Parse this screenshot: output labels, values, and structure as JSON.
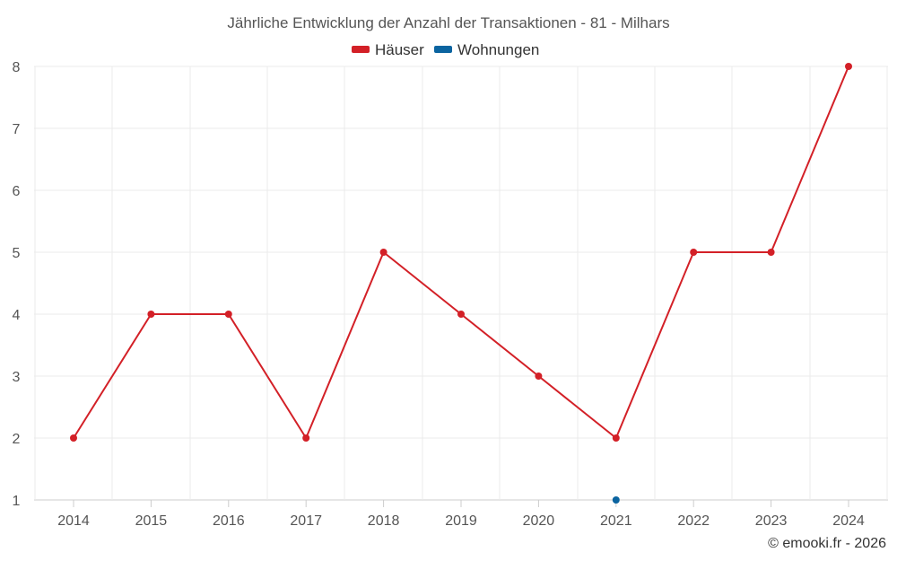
{
  "chart_data": {
    "type": "line",
    "title": "Jährliche Entwicklung der Anzahl der Transaktionen - 81 - Milhars",
    "categories": [
      "2014",
      "2015",
      "2016",
      "2017",
      "2018",
      "2019",
      "2020",
      "2021",
      "2022",
      "2023",
      "2024"
    ],
    "series": [
      {
        "name": "Häuser",
        "color": "#d32027",
        "values": [
          2,
          4,
          4,
          2,
          5,
          4,
          3,
          2,
          5,
          5,
          8
        ]
      },
      {
        "name": "Wohnungen",
        "color": "#0b64a0",
        "values": [
          null,
          null,
          null,
          null,
          null,
          null,
          null,
          1,
          null,
          null,
          null
        ]
      }
    ],
    "y_ticks": [
      "1",
      "2",
      "3",
      "4",
      "5",
      "6",
      "7",
      "8"
    ],
    "ylim": [
      1,
      8
    ],
    "grid": true,
    "legend": "top-center",
    "credit": "© emooki.fr - 2026"
  }
}
